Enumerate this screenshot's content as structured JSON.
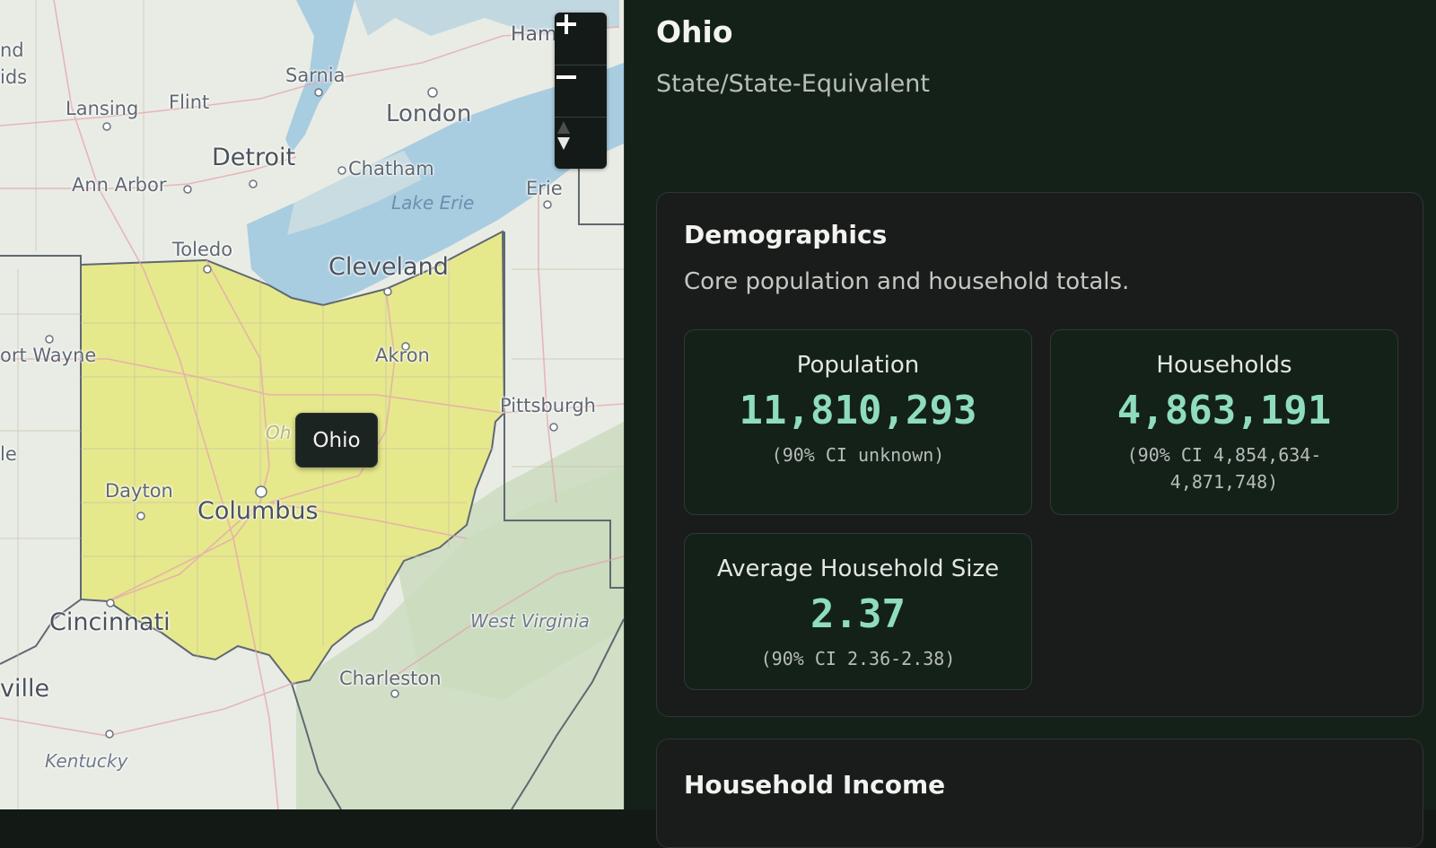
{
  "map": {
    "zoom_in_label": "+",
    "zoom_out_label": "−",
    "compass_icon": "north-arrow-icon",
    "tooltip": "Ohio",
    "labels": [
      {
        "id": "grand-rapids-a",
        "text": "nd"
      },
      {
        "id": "grand-rapids-b",
        "text": "ids"
      },
      {
        "id": "lansing",
        "text": "Lansing"
      },
      {
        "id": "flint",
        "text": "Flint"
      },
      {
        "id": "sarnia",
        "text": "Sarnia"
      },
      {
        "id": "london",
        "text": "London"
      },
      {
        "id": "hamilton",
        "text": "Ham"
      },
      {
        "id": "detroit",
        "text": "Detroit"
      },
      {
        "id": "chatham",
        "text": "Chatham"
      },
      {
        "id": "ann-arbor",
        "text": "Ann Arbor"
      },
      {
        "id": "lake-erie",
        "text": "Lake Erie"
      },
      {
        "id": "erie",
        "text": "Erie"
      },
      {
        "id": "toledo",
        "text": "Toledo"
      },
      {
        "id": "cleveland",
        "text": "Cleveland"
      },
      {
        "id": "fort-wayne",
        "text": "ort Wayne"
      },
      {
        "id": "akron",
        "text": "Akron"
      },
      {
        "id": "pittsburgh",
        "text": "Pittsburgh"
      },
      {
        "id": "le",
        "text": "le"
      },
      {
        "id": "ohio-faint",
        "text": "Oh"
      },
      {
        "id": "dayton",
        "text": "Dayton"
      },
      {
        "id": "columbus",
        "text": "Columbus"
      },
      {
        "id": "cincinnati",
        "text": "Cincinnati"
      },
      {
        "id": "west-virginia",
        "text": "West Virginia"
      },
      {
        "id": "ville",
        "text": "ville"
      },
      {
        "id": "charleston",
        "text": "Charleston"
      },
      {
        "id": "kentucky",
        "text": "Kentucky"
      }
    ]
  },
  "panel": {
    "title": "Ohio",
    "subtitle": "State/State-Equivalent",
    "demographics": {
      "heading": "Demographics",
      "description": "Core population and household totals.",
      "stats": [
        {
          "label": "Population",
          "value": "11,810,293",
          "ci": "(90% CI unknown)"
        },
        {
          "label": "Households",
          "value": "4,863,191",
          "ci": "(90% CI 4,854,634-4,871,748)"
        },
        {
          "label": "Average Household Size",
          "value": "2.37",
          "ci": "(90% CI 2.36-2.38)"
        }
      ]
    },
    "household_income": {
      "heading": "Household Income"
    }
  },
  "colors": {
    "panel_bg": "#132119",
    "card_bg": "#1a1c1b",
    "accent_value": "#8fdcbf",
    "ohio_fill": "#e6e88c",
    "water": "#a8cce0"
  }
}
